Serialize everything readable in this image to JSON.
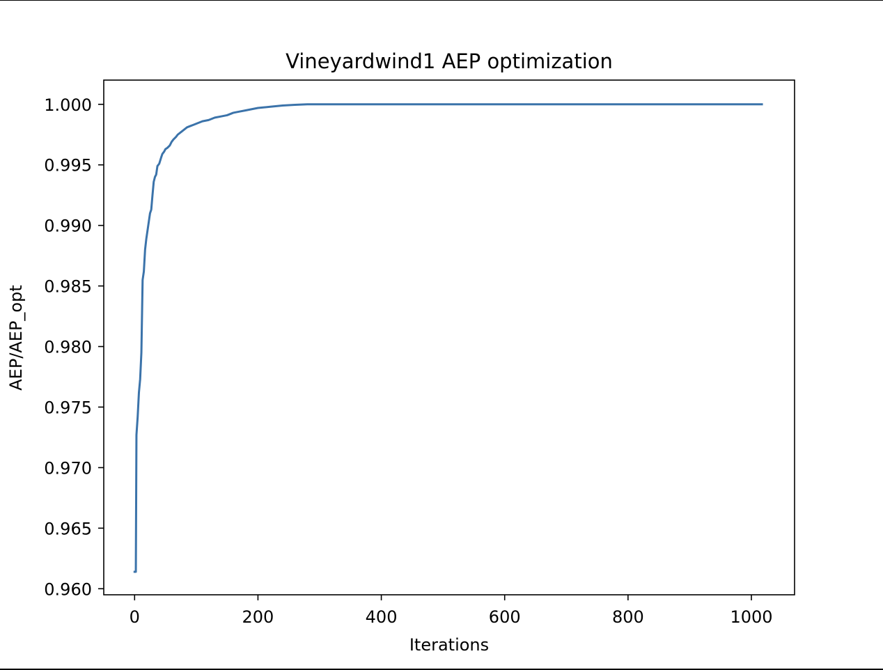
{
  "chart_data": {
    "type": "line",
    "title": "Vineyardwind1 AEP optimization",
    "xlabel": "Iterations",
    "ylabel": "AEP/AEP_opt",
    "xlim": [
      -50,
      1070
    ],
    "ylim": [
      0.9595,
      1.002
    ],
    "xticks": [
      0,
      200,
      400,
      600,
      800,
      1000
    ],
    "xtick_labels": [
      "0",
      "200",
      "400",
      "600",
      "800",
      "1000"
    ],
    "yticks": [
      0.96,
      0.965,
      0.97,
      0.975,
      0.98,
      0.985,
      0.99,
      0.995,
      1.0
    ],
    "ytick_labels": [
      "0.960",
      "0.965",
      "0.970",
      "0.975",
      "0.980",
      "0.985",
      "0.990",
      "0.995",
      "1.000"
    ],
    "grid": false,
    "legend": "none",
    "series": [
      {
        "color": "#3b73aa",
        "x": [
          0,
          2,
          3,
          5,
          7,
          9,
          11,
          13,
          15,
          17,
          19,
          21,
          23,
          25,
          27,
          29,
          31,
          33,
          35,
          37,
          40,
          43,
          45,
          48,
          50,
          53,
          57,
          60,
          63,
          67,
          70,
          75,
          80,
          85,
          90,
          95,
          100,
          110,
          120,
          130,
          140,
          150,
          160,
          170,
          180,
          190,
          200,
          210,
          220,
          230,
          240,
          250,
          260,
          270,
          280,
          300,
          350,
          400,
          500,
          600,
          700,
          800,
          900,
          1000,
          1017
        ],
        "y": [
          0.9614,
          0.9614,
          0.9727,
          0.9742,
          0.9762,
          0.9773,
          0.9795,
          0.9855,
          0.9862,
          0.988,
          0.9889,
          0.9896,
          0.9903,
          0.991,
          0.9913,
          0.9925,
          0.9936,
          0.994,
          0.9942,
          0.9949,
          0.9951,
          0.9956,
          0.9959,
          0.9961,
          0.9963,
          0.9964,
          0.9966,
          0.9969,
          0.9971,
          0.9973,
          0.9975,
          0.9977,
          0.9979,
          0.9981,
          0.9982,
          0.9983,
          0.9984,
          0.9986,
          0.9987,
          0.9989,
          0.999,
          0.9991,
          0.9993,
          0.9994,
          0.9995,
          0.9996,
          0.9997,
          0.99975,
          0.9998,
          0.99985,
          0.9999,
          0.99993,
          0.99996,
          0.99998,
          1.0,
          1.0,
          1.0,
          1.0,
          1.0,
          1.0,
          1.0,
          1.0,
          1.0,
          1.0,
          1.0
        ]
      }
    ]
  }
}
